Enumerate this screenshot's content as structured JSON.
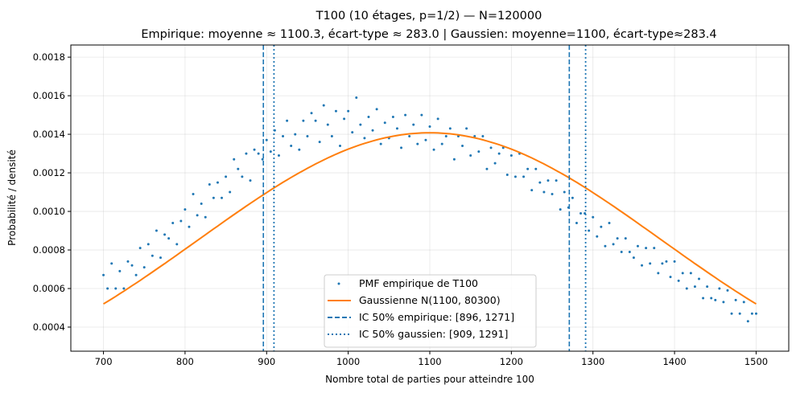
{
  "chart_data": {
    "type": "scatter",
    "title": "T100 (10 étages, p=1/2) — N=120000",
    "subtitle": "Empirique: moyenne ≈ 1100.3, écart-type ≈ 283.0 | Gaussien: moyenne=1100, écart-type≈283.4",
    "xlabel": "Nombre total de parties pour atteindre 100",
    "ylabel": "Probabilité / densité",
    "xlim": [
      660,
      1540
    ],
    "ylim": [
      0.000275,
      0.001863
    ],
    "xticks": [
      700,
      800,
      900,
      1000,
      1100,
      1200,
      1300,
      1400,
      1500
    ],
    "yticks": [
      "0.0004",
      "0.0006",
      "0.0008",
      "0.0010",
      "0.0012",
      "0.0014",
      "0.0016",
      "0.0018"
    ],
    "grid": true,
    "legend_placement": "lower-center",
    "colors": {
      "empirical": "#1f77b4",
      "gaussian": "#ff7f0e"
    },
    "series": [
      {
        "name": "PMF empirique de T100",
        "kind": "scatter",
        "x_start": 700,
        "x_step": 5,
        "values_e5": [
          67,
          60,
          73,
          60,
          69,
          60,
          74,
          72,
          67,
          81,
          71,
          83,
          77,
          90,
          76,
          88,
          86,
          94,
          83,
          95,
          101,
          92,
          109,
          98,
          104,
          97,
          114,
          107,
          115,
          107,
          118,
          110,
          127,
          122,
          118,
          130,
          116,
          132,
          130,
          127,
          137,
          131,
          142,
          129,
          139,
          147,
          134,
          140,
          132,
          147,
          139,
          151,
          147,
          136,
          155,
          145,
          139,
          152,
          134,
          148,
          152,
          141,
          159,
          145,
          138,
          149,
          142,
          153,
          135,
          146,
          138,
          149,
          143,
          133,
          150,
          139,
          145,
          135,
          150,
          137,
          144,
          132,
          148,
          135,
          139,
          143,
          127,
          139,
          134,
          143,
          129,
          139,
          131,
          139,
          122,
          133,
          125,
          130,
          133,
          119,
          129,
          118,
          130,
          118,
          122,
          111,
          122,
          115,
          110,
          116,
          109,
          116,
          101,
          110,
          102,
          107,
          94,
          99,
          99,
          90,
          97,
          87,
          92,
          82,
          94,
          83,
          86,
          79,
          86,
          79,
          76,
          82,
          72,
          81,
          73,
          81,
          68,
          73,
          74,
          66,
          74,
          64,
          68,
          60,
          68,
          61,
          65,
          55,
          61,
          55,
          54,
          60,
          53,
          59,
          47,
          54,
          47,
          53,
          43,
          47,
          47
        ]
      },
      {
        "name": "Gaussienne N(1100, 80300)",
        "kind": "line",
        "mean": 1100,
        "sd": 283.4,
        "x_range": [
          700,
          1500
        ]
      },
      {
        "name": "IC 50% empirique: [896, 1271]",
        "kind": "vline-dashed",
        "x": [
          896,
          1271
        ]
      },
      {
        "name": "IC 50% gaussien: [909, 1291]",
        "kind": "vline-dotted",
        "x": [
          909,
          1291
        ]
      }
    ]
  }
}
